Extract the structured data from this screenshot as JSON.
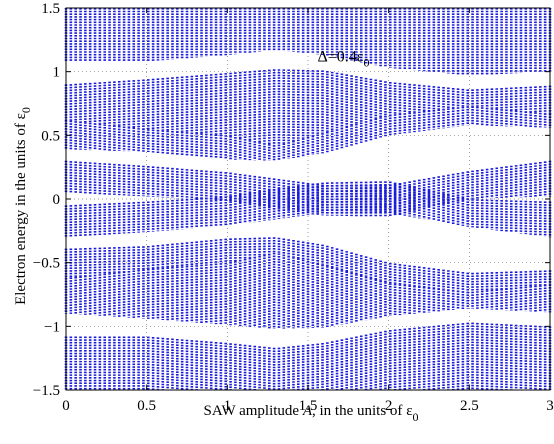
{
  "chart_data": {
    "type": "scatter",
    "title": "",
    "xlabel": {
      "prefix": "SAW amplitude ",
      "var": "A",
      "mid": ", in the units of ",
      "sym": "ε",
      "sub": "0"
    },
    "ylabel": {
      "text": "Electron energy in the units of ",
      "sym": "ε",
      "sub": "0"
    },
    "annotation": {
      "prefix": "Δ=0.4",
      "sym": "ε",
      "sub": "0",
      "x": 1.72,
      "y": 1.08
    },
    "xlim": [
      0,
      3
    ],
    "ylim": [
      -1.5,
      1.5
    ],
    "xticks": [
      0,
      0.5,
      1,
      1.5,
      2,
      2.5,
      3
    ],
    "xtick_labels": [
      "0",
      "0.5",
      "1",
      "1.5",
      "2",
      "2.5",
      "3"
    ],
    "yticks": [
      -1.5,
      -1,
      -0.5,
      0,
      0.5,
      1,
      1.5
    ],
    "ytick_labels": [
      "−1.5",
      "−1",
      "−0.5",
      "0",
      "0.5",
      "1",
      "1.5"
    ],
    "grid": true,
    "marker_color": "#1a1adb",
    "x_step": 0.03,
    "bands": [
      {
        "upper": [
          [
            0,
            1.5
          ],
          [
            3,
            1.5
          ]
        ],
        "lower": [
          [
            0,
            1.08
          ],
          [
            0.5,
            1.08
          ],
          [
            1.0,
            1.13
          ],
          [
            1.3,
            1.17
          ],
          [
            1.6,
            1.13
          ],
          [
            2.0,
            1.03
          ],
          [
            2.5,
            0.97
          ],
          [
            3.0,
            1.0
          ]
        ]
      },
      {
        "upper": [
          [
            0,
            0.9
          ],
          [
            0.5,
            0.94
          ],
          [
            1.0,
            0.99
          ],
          [
            1.3,
            1.02
          ],
          [
            1.6,
            1.01
          ],
          [
            2.0,
            0.92
          ],
          [
            2.5,
            0.86
          ],
          [
            3.0,
            0.89
          ]
        ],
        "lower": [
          [
            0,
            0.62
          ],
          [
            0.5,
            0.55
          ],
          [
            1.0,
            0.5
          ],
          [
            1.3,
            0.42
          ],
          [
            1.6,
            0.52
          ],
          [
            2.0,
            0.66
          ],
          [
            2.5,
            0.73
          ],
          [
            3.0,
            0.67
          ]
        ]
      },
      {
        "upper": [
          [
            0,
            0.62
          ],
          [
            0.5,
            0.55
          ],
          [
            1.0,
            0.5
          ],
          [
            1.3,
            0.42
          ],
          [
            1.6,
            0.52
          ],
          [
            2.0,
            0.66
          ],
          [
            2.5,
            0.73
          ],
          [
            3.0,
            0.67
          ]
        ],
        "lower": [
          [
            0,
            0.39
          ],
          [
            0.5,
            0.37
          ],
          [
            1.0,
            0.31
          ],
          [
            1.3,
            0.3
          ],
          [
            1.6,
            0.36
          ],
          [
            2.0,
            0.5
          ],
          [
            2.5,
            0.58
          ],
          [
            3.0,
            0.56
          ]
        ]
      },
      {
        "upper": [
          [
            0,
            0.3
          ],
          [
            0.5,
            0.26
          ],
          [
            1.0,
            0.21
          ],
          [
            1.3,
            0.16
          ],
          [
            1.6,
            0.11
          ],
          [
            2.0,
            0.11
          ],
          [
            2.5,
            0.22
          ],
          [
            3.0,
            0.3
          ]
        ],
        "lower": [
          [
            0,
            0.05
          ],
          [
            0.5,
            0.02
          ],
          [
            1.0,
            -0.02
          ],
          [
            1.3,
            -0.08
          ],
          [
            1.6,
            -0.13
          ],
          [
            2.0,
            -0.14
          ],
          [
            2.5,
            0.0
          ],
          [
            3.0,
            0.02
          ]
        ]
      },
      {
        "upper": [
          [
            0,
            -0.05
          ],
          [
            0.5,
            -0.02
          ],
          [
            1.0,
            0.02
          ],
          [
            1.3,
            0.08
          ],
          [
            1.6,
            0.13
          ],
          [
            2.0,
            0.14
          ],
          [
            2.5,
            0.0
          ],
          [
            3.0,
            -0.02
          ]
        ],
        "lower": [
          [
            0,
            -0.3
          ],
          [
            0.5,
            -0.26
          ],
          [
            1.0,
            -0.21
          ],
          [
            1.3,
            -0.16
          ],
          [
            1.6,
            -0.11
          ],
          [
            2.0,
            -0.11
          ],
          [
            2.5,
            -0.22
          ],
          [
            3.0,
            -0.3
          ]
        ]
      },
      {
        "upper": [
          [
            0,
            -0.39
          ],
          [
            0.5,
            -0.37
          ],
          [
            1.0,
            -0.31
          ],
          [
            1.3,
            -0.3
          ],
          [
            1.6,
            -0.36
          ],
          [
            2.0,
            -0.5
          ],
          [
            2.5,
            -0.58
          ],
          [
            3.0,
            -0.56
          ]
        ],
        "lower": [
          [
            0,
            -0.62
          ],
          [
            0.5,
            -0.55
          ],
          [
            1.0,
            -0.5
          ],
          [
            1.3,
            -0.42
          ],
          [
            1.6,
            -0.52
          ],
          [
            2.0,
            -0.66
          ],
          [
            2.5,
            -0.73
          ],
          [
            3.0,
            -0.67
          ]
        ]
      },
      {
        "upper": [
          [
            0,
            -0.62
          ],
          [
            0.5,
            -0.55
          ],
          [
            1.0,
            -0.5
          ],
          [
            1.3,
            -0.42
          ],
          [
            1.6,
            -0.52
          ],
          [
            2.0,
            -0.66
          ],
          [
            2.5,
            -0.73
          ],
          [
            3.0,
            -0.67
          ]
        ],
        "lower": [
          [
            0,
            -0.9
          ],
          [
            0.5,
            -0.94
          ],
          [
            1.0,
            -0.99
          ],
          [
            1.3,
            -1.02
          ],
          [
            1.6,
            -1.01
          ],
          [
            2.0,
            -0.92
          ],
          [
            2.5,
            -0.86
          ],
          [
            3.0,
            -0.89
          ]
        ]
      },
      {
        "upper": [
          [
            0,
            -1.08
          ],
          [
            0.5,
            -1.08
          ],
          [
            1.0,
            -1.13
          ],
          [
            1.3,
            -1.17
          ],
          [
            1.6,
            -1.13
          ],
          [
            2.0,
            -1.03
          ],
          [
            2.5,
            -0.97
          ],
          [
            3.0,
            -1.0
          ]
        ],
        "lower": [
          [
            0,
            -1.5
          ],
          [
            3,
            -1.5
          ]
        ]
      }
    ]
  }
}
